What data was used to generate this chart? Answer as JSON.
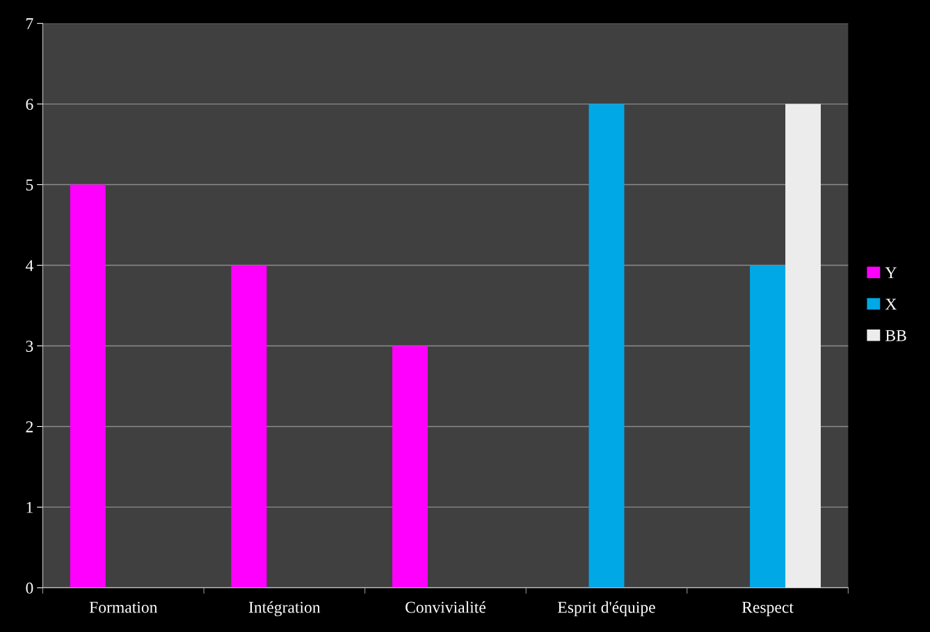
{
  "chart_data": {
    "type": "bar",
    "categories": [
      "Formation",
      "Intégration",
      "Convivialité",
      "Esprit d'équipe",
      "Respect"
    ],
    "series": [
      {
        "name": "Y",
        "color": "#ff00ff",
        "values": [
          5,
          4,
          3,
          null,
          null
        ]
      },
      {
        "name": "X",
        "color": "#00a8e6",
        "values": [
          null,
          null,
          null,
          6,
          4
        ]
      },
      {
        "name": "BB",
        "color": "#ececec",
        "values": [
          null,
          null,
          null,
          null,
          6
        ]
      }
    ],
    "ylim": [
      0,
      7
    ],
    "yticks": [
      0,
      1,
      2,
      3,
      4,
      5,
      6,
      7
    ],
    "grid": "y",
    "legend": "right"
  }
}
